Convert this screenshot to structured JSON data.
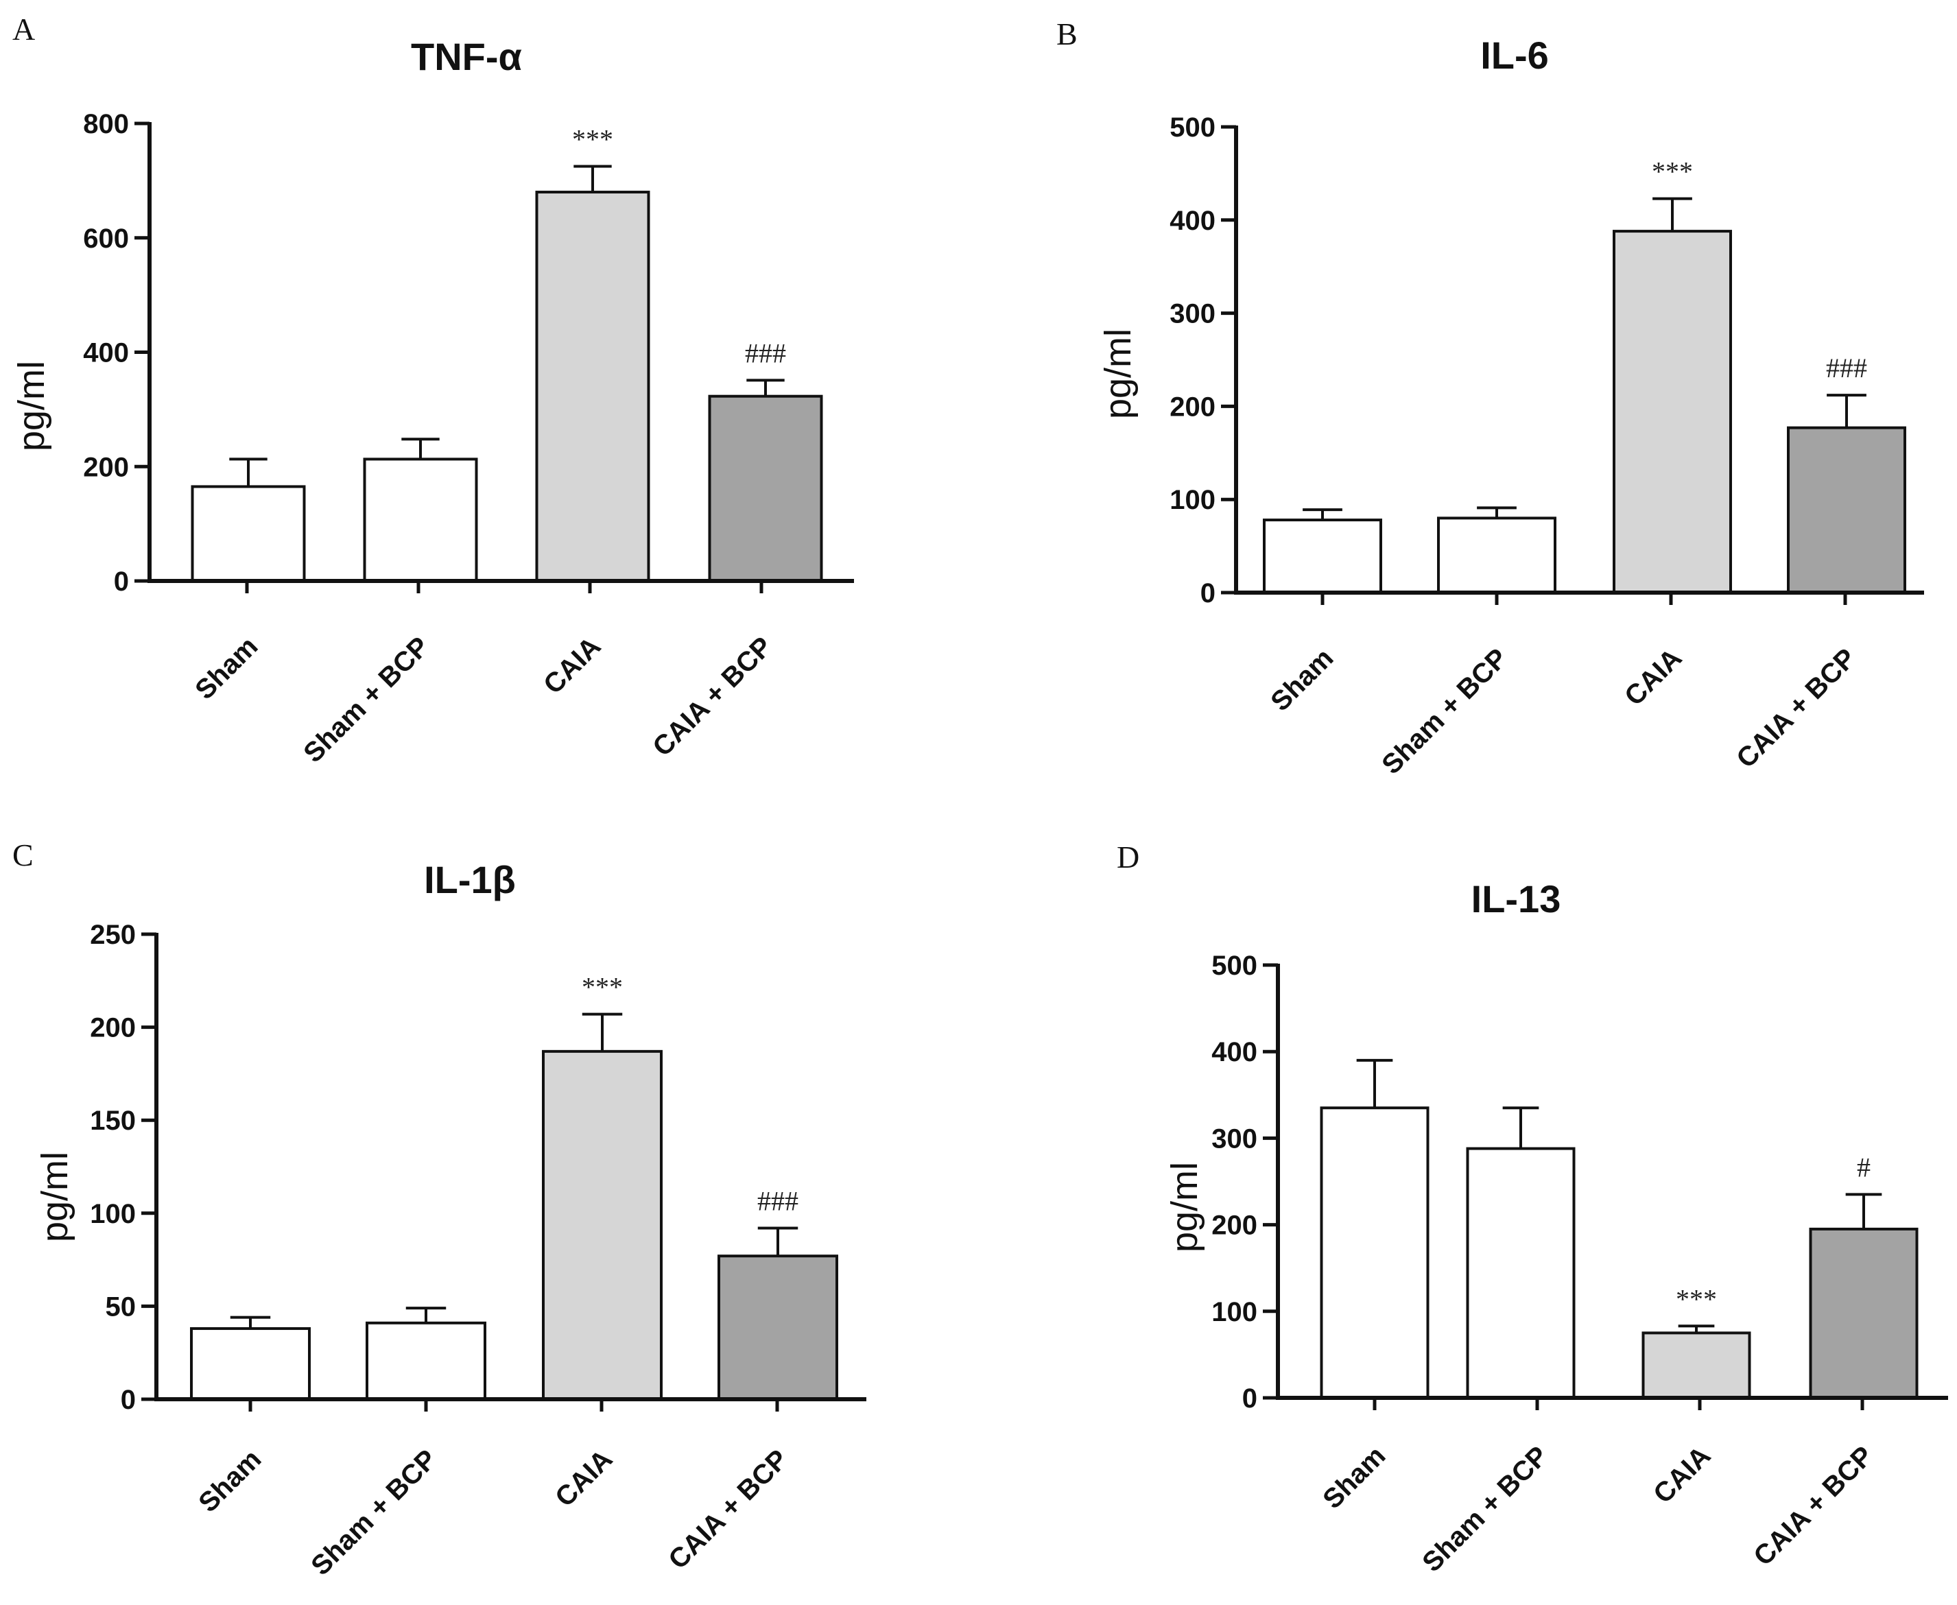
{
  "chart_data": [
    {
      "panel": "A",
      "type": "bar",
      "title": "TNF-α",
      "xlabel": "",
      "ylabel": "pg/ml",
      "ylim": [
        0,
        800
      ],
      "yticks": [
        0,
        200,
        400,
        600,
        800
      ],
      "categories": [
        "Sham",
        "Sham + BCP",
        "CAIA",
        "CAIA + BCP"
      ],
      "values": [
        165,
        213,
        680,
        323
      ],
      "errors": [
        48,
        35,
        45,
        28
      ],
      "bar_colors": [
        "#ffffff",
        "#ffffff",
        "#d6d6d6",
        "#a3a3a3"
      ],
      "annotations": [
        "",
        "",
        "***",
        "###"
      ]
    },
    {
      "panel": "B",
      "type": "bar",
      "title": "IL-6",
      "xlabel": "",
      "ylabel": "pg/ml",
      "ylim": [
        0,
        500
      ],
      "yticks": [
        0,
        100,
        200,
        300,
        400,
        500
      ],
      "categories": [
        "Sham",
        "Sham + BCP",
        "CAIA",
        "CAIA + BCP"
      ],
      "values": [
        78,
        80,
        388,
        177
      ],
      "errors": [
        11,
        11,
        35,
        35
      ],
      "bar_colors": [
        "#ffffff",
        "#ffffff",
        "#d6d6d6",
        "#a3a3a3"
      ],
      "annotations": [
        "",
        "",
        "***",
        "###"
      ]
    },
    {
      "panel": "C",
      "type": "bar",
      "title": "IL-1β",
      "xlabel": "",
      "ylabel": "pg/ml",
      "ylim": [
        0,
        250
      ],
      "yticks": [
        0,
        50,
        100,
        150,
        200,
        250
      ],
      "categories": [
        "Sham",
        "Sham + BCP",
        "CAIA",
        "CAIA + BCP"
      ],
      "values": [
        38,
        41,
        187,
        77
      ],
      "errors": [
        6,
        8,
        20,
        15
      ],
      "bar_colors": [
        "#ffffff",
        "#ffffff",
        "#d6d6d6",
        "#a3a3a3"
      ],
      "annotations": [
        "",
        "",
        "***",
        "###"
      ]
    },
    {
      "panel": "D",
      "type": "bar",
      "title": "IL-13",
      "xlabel": "",
      "ylabel": "pg/ml",
      "ylim": [
        0,
        500
      ],
      "yticks": [
        0,
        100,
        200,
        300,
        400,
        500
      ],
      "categories": [
        "Sham",
        "Sham + BCP",
        "CAIA",
        "CAIA + BCP"
      ],
      "values": [
        335,
        288,
        75,
        195
      ],
      "errors": [
        55,
        47,
        8,
        40
      ],
      "bar_colors": [
        "#ffffff",
        "#ffffff",
        "#d6d6d6",
        "#a3a3a3"
      ],
      "annotations": [
        "",
        "",
        "***",
        "#"
      ]
    }
  ]
}
